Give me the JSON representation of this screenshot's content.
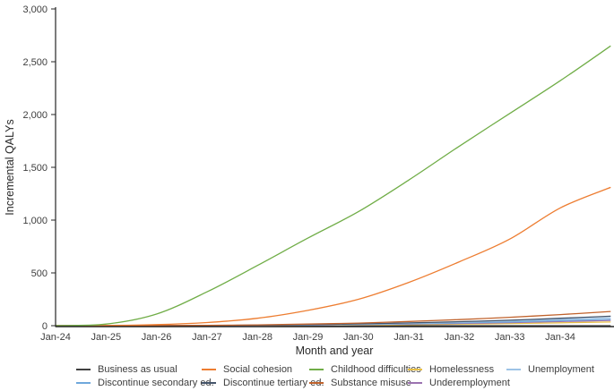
{
  "chart_data": {
    "type": "line",
    "title": "",
    "xlabel": "Month and year",
    "ylabel": "Incremental QALYs",
    "ylim": [
      0,
      3000
    ],
    "grid": false,
    "legend_position": "bottom",
    "y_ticks": [
      {
        "value": 0,
        "label": "0"
      },
      {
        "value": 500,
        "label": "500"
      },
      {
        "value": 1000,
        "label": "1,000"
      },
      {
        "value": 1500,
        "label": "1,500"
      },
      {
        "value": 2000,
        "label": "2,000"
      },
      {
        "value": 2500,
        "label": "2,500"
      },
      {
        "value": 3000,
        "label": "3,000"
      }
    ],
    "x_ticks": [
      {
        "year": 0,
        "label": "Jan-24"
      },
      {
        "year": 1,
        "label": "Jan-25"
      },
      {
        "year": 2,
        "label": "Jan-26"
      },
      {
        "year": 3,
        "label": "Jan-27"
      },
      {
        "year": 4,
        "label": "Jan-28"
      },
      {
        "year": 5,
        "label": "Jan-29"
      },
      {
        "year": 6,
        "label": "Jan-30"
      },
      {
        "year": 7,
        "label": "Jan-31"
      },
      {
        "year": 8,
        "label": "Jan-32"
      },
      {
        "year": 9,
        "label": "Jan-33"
      },
      {
        "year": 10,
        "label": "Jan-34"
      }
    ],
    "x_sample_years": [
      0,
      1,
      2,
      3,
      4,
      5,
      6,
      7,
      8,
      9,
      10,
      11
    ],
    "series": [
      {
        "name": "Business as usual",
        "color": "#404040",
        "legend_row": 1,
        "legend_col": 0,
        "values": [
          0,
          0,
          0,
          0,
          0,
          0,
          0,
          0,
          0,
          0,
          0,
          0
        ]
      },
      {
        "name": "Social cohesion",
        "color": "#ED7D31",
        "legend_row": 1,
        "legend_col": 1,
        "values": [
          0,
          2,
          10,
          30,
          70,
          145,
          250,
          410,
          605,
          820,
          1115,
          1310
        ]
      },
      {
        "name": "Childhood difficulties",
        "color": "#70AD47",
        "legend_row": 1,
        "legend_col": 2,
        "values": [
          0,
          15,
          110,
          320,
          570,
          830,
          1080,
          1380,
          1700,
          2010,
          2320,
          2650
        ]
      },
      {
        "name": "Homelessness",
        "color": "#E9C046",
        "legend_row": 1,
        "legend_col": 3,
        "values": [
          0,
          0,
          0,
          1,
          2,
          4,
          7,
          10,
          15,
          20,
          27,
          35
        ]
      },
      {
        "name": "Unemployment",
        "color": "#9DC3E6",
        "legend_row": 1,
        "legend_col": 4,
        "values": [
          0,
          0,
          1,
          2,
          4,
          8,
          14,
          22,
          32,
          45,
          60,
          75
        ]
      },
      {
        "name": "Discontinue secondary ed.",
        "color": "#6FA8DC",
        "legend_row": 2,
        "legend_col": 0,
        "values": [
          0,
          0,
          0,
          2,
          4,
          7,
          12,
          18,
          26,
          36,
          48,
          60
        ]
      },
      {
        "name": "Discontinue tertiary ed.",
        "color": "#44546A",
        "legend_row": 2,
        "legend_col": 1,
        "values": [
          0,
          0,
          1,
          2,
          5,
          10,
          17,
          26,
          38,
          52,
          70,
          90
        ]
      },
      {
        "name": "Substance misuse",
        "color": "#C0622C",
        "legend_row": 2,
        "legend_col": 2,
        "values": [
          0,
          0,
          1,
          3,
          8,
          15,
          25,
          40,
          58,
          80,
          105,
          135
        ]
      },
      {
        "name": "Underemployment",
        "color": "#9B72B0",
        "legend_row": 2,
        "legend_col": 3,
        "values": [
          0,
          0,
          0,
          1,
          3,
          6,
          10,
          15,
          21,
          29,
          39,
          50
        ]
      }
    ],
    "axis_color": "#262626"
  }
}
